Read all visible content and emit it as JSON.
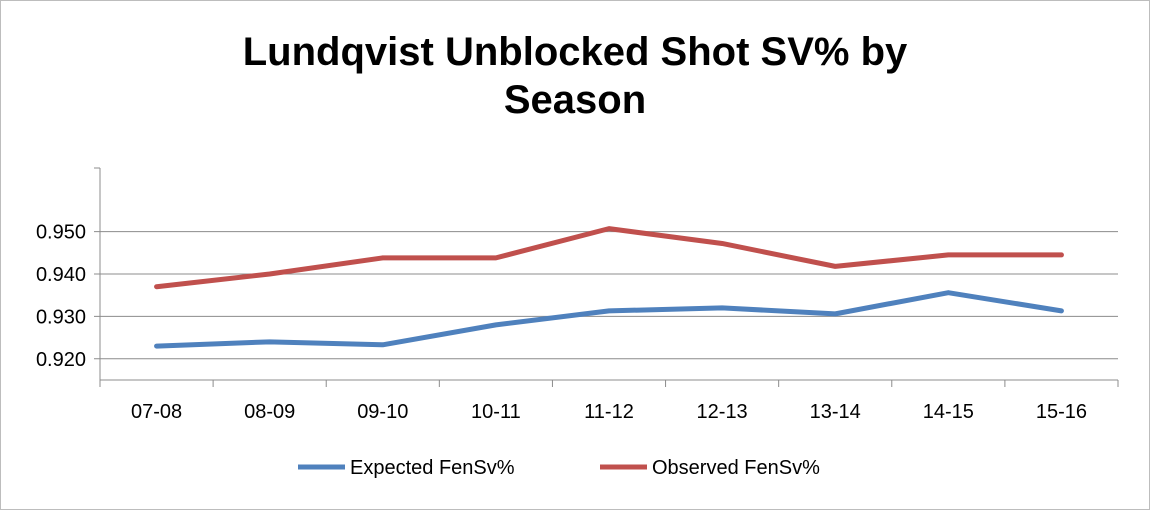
{
  "chart_data": {
    "type": "line",
    "title_line1": "Lundqvist Unblocked Shot SV% by",
    "title_line2": "Season",
    "categories": [
      "07-08",
      "08-09",
      "09-10",
      "10-11",
      "11-12",
      "12-13",
      "13-14",
      "14-15",
      "15-16"
    ],
    "ylim": [
      0.915,
      0.965
    ],
    "yticks": [
      "0.920",
      "0.930",
      "0.940",
      "0.950"
    ],
    "ytick_values": [
      0.92,
      0.93,
      0.94,
      0.95
    ],
    "grid": true,
    "legend_position": "bottom",
    "series": [
      {
        "name": "Expected FenSv%",
        "color": "#4F81BD",
        "values": [
          0.923,
          0.924,
          0.9233,
          0.928,
          0.9313,
          0.932,
          0.9306,
          0.9356,
          0.9313
        ]
      },
      {
        "name": "Observed FenSv%",
        "color": "#C0504D",
        "values": [
          0.937,
          0.94,
          0.9438,
          0.9438,
          0.9507,
          0.9472,
          0.9418,
          0.9445,
          0.9445
        ]
      }
    ]
  }
}
